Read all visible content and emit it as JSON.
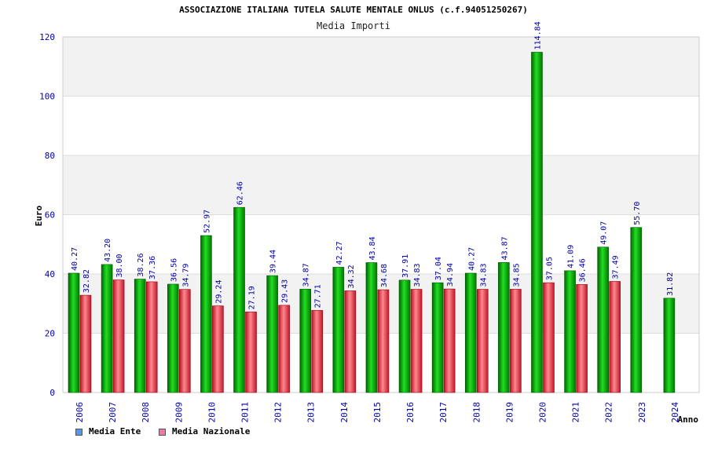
{
  "chart_data": {
    "type": "bar",
    "title": "ASSOCIAZIONE ITALIANA TUTELA SALUTE MENTALE ONLUS (c.f.94051250267)",
    "subtitle": "Media Importi",
    "xlabel": "Anno",
    "ylabel": "Euro",
    "ylim": [
      0,
      120
    ],
    "yticks": [
      0,
      20,
      40,
      60,
      80,
      100,
      120
    ],
    "grid": true,
    "legend_position": "bottom-left",
    "categories": [
      "2006",
      "2007",
      "2008",
      "2009",
      "2010",
      "2011",
      "2012",
      "2013",
      "2014",
      "2015",
      "2016",
      "2017",
      "2018",
      "2019",
      "2020",
      "2021",
      "2022",
      "2023",
      "2024"
    ],
    "series": [
      {
        "name": "Media Ente",
        "color": "#00aa00",
        "values": [
          40.27,
          43.2,
          38.26,
          36.56,
          52.97,
          62.46,
          39.44,
          34.87,
          42.27,
          43.84,
          37.91,
          37.04,
          40.27,
          43.87,
          114.84,
          41.09,
          49.07,
          55.7,
          31.82
        ],
        "labels": [
          "40.27",
          "43.20",
          "38.26",
          "36.56",
          "52.97",
          "62.46",
          "39.44",
          "34.87",
          "42.27",
          "43.84",
          "37.91",
          "37.04",
          "40.27",
          "43.87",
          "114.84",
          "41.09",
          "49.07",
          "55.70",
          "31.82"
        ]
      },
      {
        "name": "Media Nazionale",
        "color": "#e8303a",
        "values": [
          32.82,
          38.0,
          37.36,
          34.79,
          29.24,
          27.19,
          29.43,
          27.71,
          34.32,
          34.68,
          34.83,
          34.94,
          34.83,
          34.85,
          37.05,
          36.46,
          37.49,
          null,
          null
        ],
        "labels": [
          "32.82",
          "38.00",
          "37.36",
          "34.79",
          "29.24",
          "27.19",
          "29.43",
          "27.71",
          "34.32",
          "34.68",
          "34.83",
          "34.94",
          "34.83",
          "34.85",
          "37.05",
          "36.46",
          "37.49",
          null,
          null
        ]
      }
    ]
  },
  "legend": {
    "ente_label": "Media Ente",
    "ente_color": "#5599ee",
    "nazionale_label": "Media Nazionale",
    "nazionale_color": "#ee77aa"
  }
}
